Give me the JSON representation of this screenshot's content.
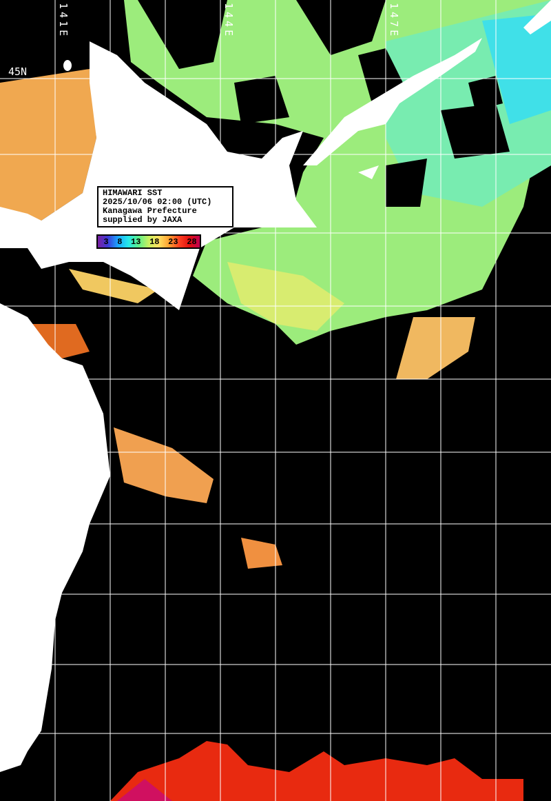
{
  "map": {
    "title": "HIMAWARI SST",
    "datetime": "2025/10/06 02:00 (UTC)",
    "region": "Kanagawa Prefecture",
    "credit": "supplied by JAXA",
    "longitude_labels": [
      "141E",
      "144E",
      "147E"
    ],
    "latitude_labels": [
      "45N"
    ],
    "colorbar": {
      "unit_ticks": [
        "3",
        "8",
        "13",
        "18",
        "23",
        "28"
      ],
      "colors": [
        "#7a1fa0",
        "#1aa8ff",
        "#5cf08a",
        "#ffe060",
        "#ff4020",
        "#c00050"
      ]
    },
    "colors": {
      "ocean_nodata": "#000000",
      "land": "#ffffff",
      "grid": "#ffffff"
    }
  }
}
